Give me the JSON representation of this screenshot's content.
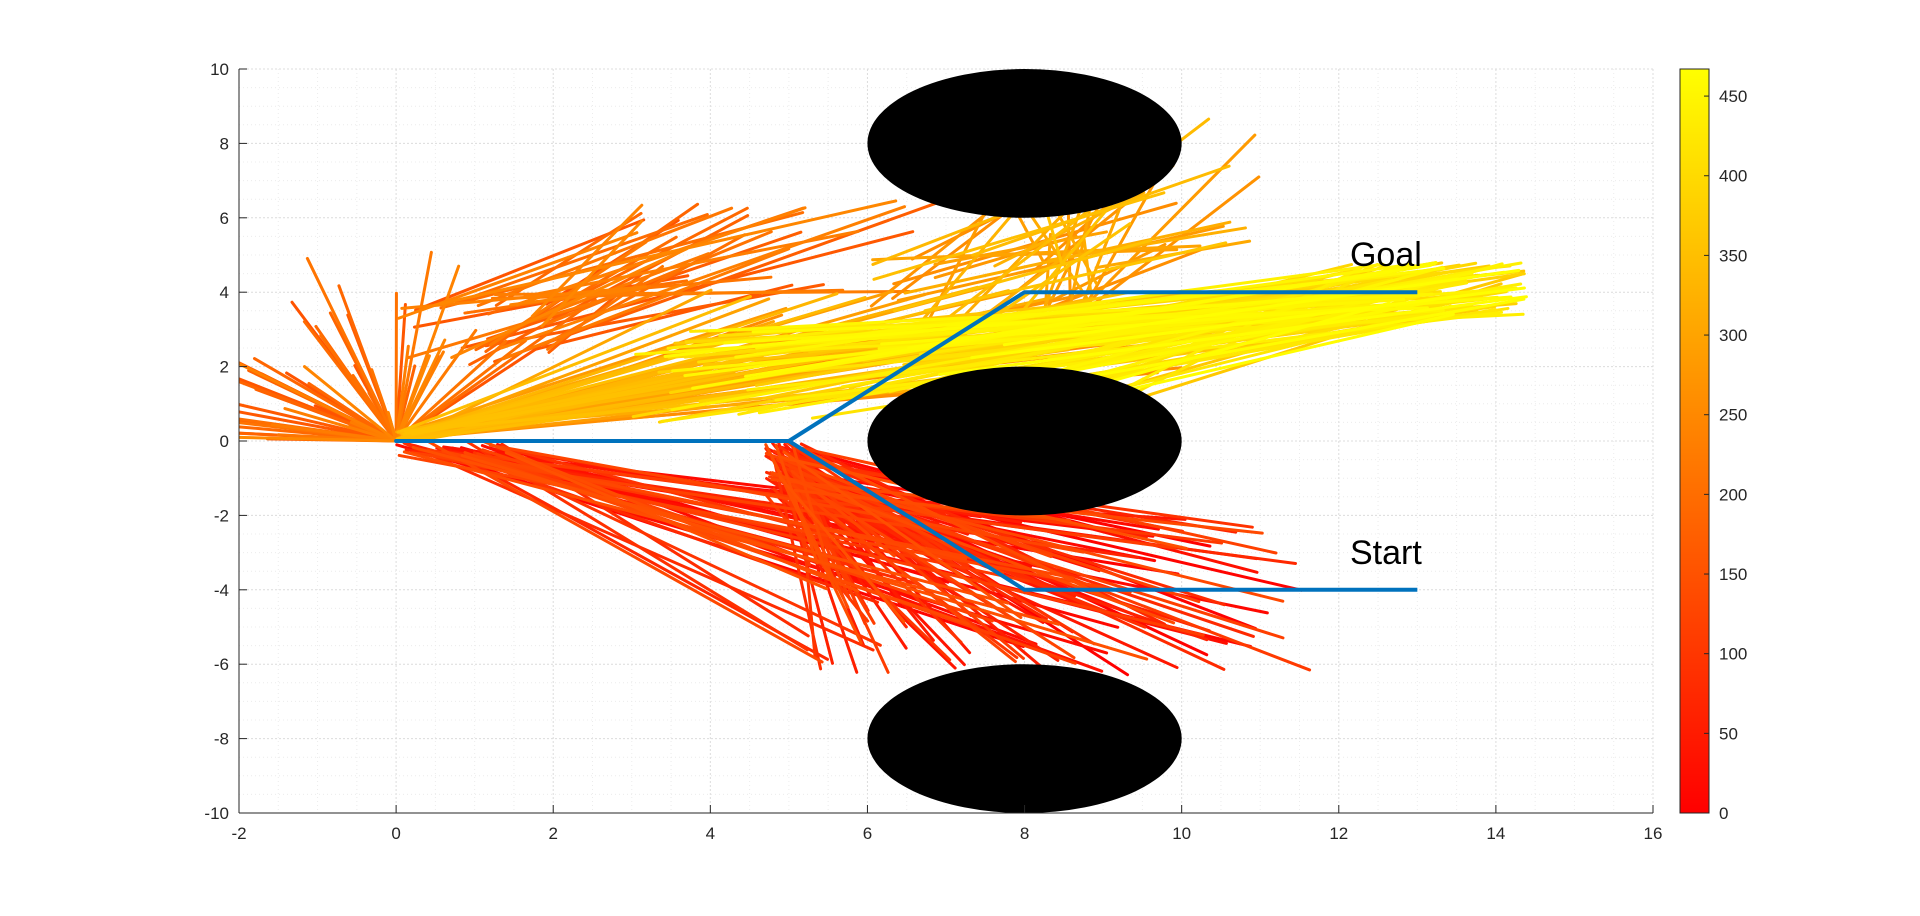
{
  "chart_data": {
    "type": "line",
    "title": "",
    "xlabel": "",
    "ylabel": "",
    "xlim": [
      -2,
      16
    ],
    "ylim": [
      -10,
      10
    ],
    "x_ticks": [
      "-2",
      "0",
      "2",
      "4",
      "6",
      "8",
      "10",
      "12",
      "14",
      "16"
    ],
    "y_ticks": [
      "-10",
      "-8",
      "-6",
      "-4",
      "-2",
      "0",
      "2",
      "4",
      "6",
      "8",
      "10"
    ],
    "grid": true,
    "minor_grid": true,
    "obstacles": [
      {
        "shape": "ellipse",
        "center": [
          8,
          8
        ],
        "radius_x": 2,
        "radius_y": 2,
        "color": "#000000"
      },
      {
        "shape": "ellipse",
        "center": [
          8,
          0
        ],
        "radius_x": 2,
        "radius_y": 2,
        "color": "#000000"
      },
      {
        "shape": "ellipse",
        "center": [
          8,
          -8
        ],
        "radius_x": 2,
        "radius_y": 2,
        "color": "#000000"
      }
    ],
    "path": {
      "color": "#0072BD",
      "x": [
        13,
        8,
        5,
        0,
        5,
        8,
        13
      ],
      "y": [
        -4,
        -4,
        0,
        0,
        0,
        4,
        4
      ]
    },
    "annotations": [
      {
        "text": "Goal",
        "x": 12.6,
        "y": 4.7
      },
      {
        "text": "Start",
        "x": 12.6,
        "y": -3.3
      }
    ],
    "tree_edges": {
      "description_colored_by": "iteration",
      "count": 467
    },
    "colorbar": {
      "colormap": "autumn",
      "min": 0,
      "max": 467,
      "ticks": [
        "0",
        "50",
        "100",
        "150",
        "200",
        "250",
        "300",
        "350",
        "400",
        "450"
      ],
      "color_low": "#ff0000",
      "color_high": "#ffff00"
    }
  }
}
